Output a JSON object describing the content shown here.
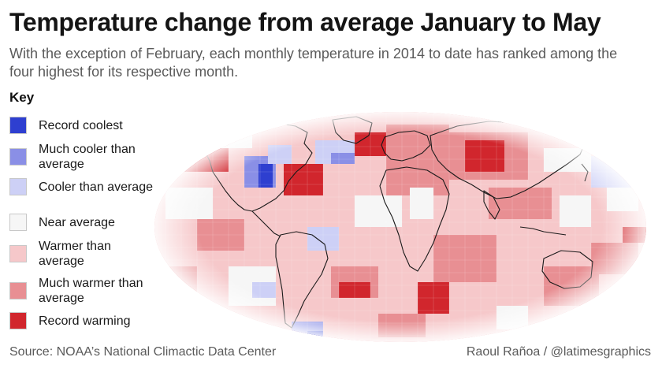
{
  "header": {
    "title": "Temperature change from average January to May",
    "subtitle": "With the exception of February, each monthly temperature in 2014 to date has ranked among the four highest for its respective month."
  },
  "legend": {
    "title": "Key",
    "items": [
      {
        "label": "Record coolest",
        "color": "#2e3fd0"
      },
      {
        "label": "Much cooler than average",
        "color": "#8a8fe6"
      },
      {
        "label": "Cooler than average",
        "color": "#cdd0f6"
      },
      {
        "label": "Near average",
        "color": "#f6f6f6"
      },
      {
        "label": "Warmer than average",
        "color": "#f6c8ca"
      },
      {
        "label": "Much warmer than average",
        "color": "#e88f93"
      },
      {
        "label": "Record warming",
        "color": "#d1262d"
      }
    ]
  },
  "map": {
    "description_colors": {
      "ocean_background": "#ffffff",
      "coastline": "#1a1a1a"
    }
  },
  "footer": {
    "source": "Source: NOAA’s National Climactic Data Center",
    "credit": "Raoul Rañoa / @latimesgraphics"
  }
}
